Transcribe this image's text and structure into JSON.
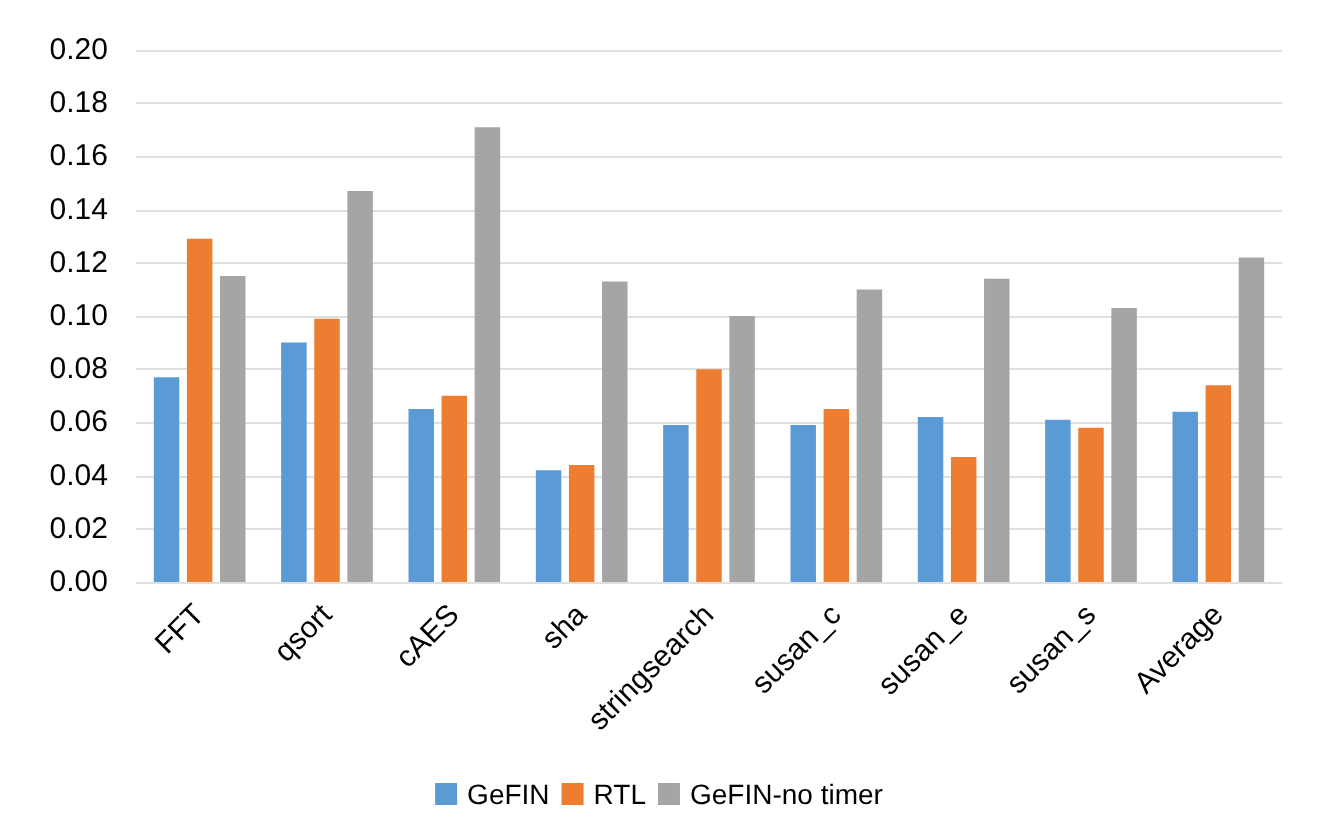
{
  "chart_data": {
    "type": "bar",
    "categories": [
      "FFT",
      "qsort",
      "cAES",
      "sha",
      "stringsearch",
      "susan_c",
      "susan_e",
      "susan_s",
      "Average"
    ],
    "series": [
      {
        "name": "GeFIN",
        "color": "#5b9bd5",
        "values": [
          0.077,
          0.09,
          0.065,
          0.042,
          0.059,
          0.059,
          0.062,
          0.061,
          0.064
        ]
      },
      {
        "name": "RTL",
        "color": "#ed7d31",
        "values": [
          0.129,
          0.099,
          0.07,
          0.044,
          0.08,
          0.065,
          0.047,
          0.058,
          0.074
        ]
      },
      {
        "name": "GeFIN-no timer",
        "color": "#a5a5a5",
        "values": [
          0.115,
          0.147,
          0.171,
          0.113,
          0.1,
          0.11,
          0.114,
          0.103,
          0.122
        ]
      }
    ],
    "ylim": [
      0,
      0.2
    ],
    "yticks": [
      {
        "value": 0,
        "label": "0.00"
      },
      {
        "value": 0.02,
        "label": "0.02"
      },
      {
        "value": 0.04,
        "label": "0.04"
      },
      {
        "value": 0.06,
        "label": "0.06"
      },
      {
        "value": 0.08,
        "label": "0.08"
      },
      {
        "value": 0.1,
        "label": "0.10"
      },
      {
        "value": 0.12,
        "label": "0.12"
      },
      {
        "value": 0.14,
        "label": "0.14"
      },
      {
        "value": 0.16,
        "label": "0.16"
      },
      {
        "value": 0.18,
        "label": "0.18"
      },
      {
        "value": 0.2,
        "label": "0.20"
      }
    ],
    "grid": "y",
    "legend": "bottom"
  }
}
